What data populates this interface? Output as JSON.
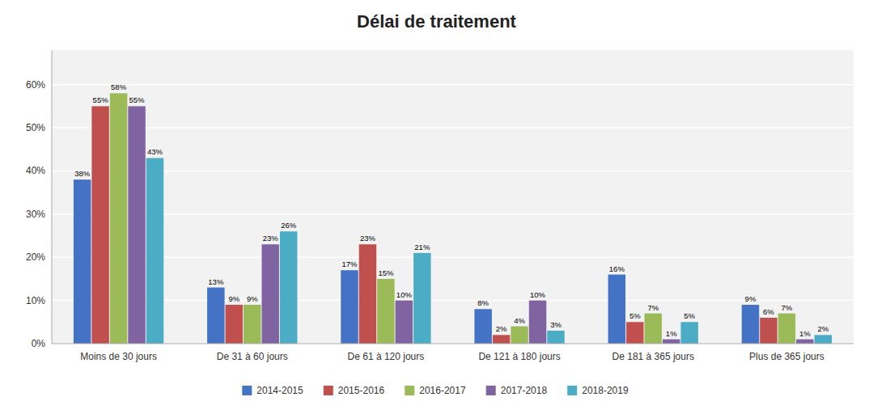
{
  "chart_data": {
    "type": "bar",
    "title": "Délai de traitement",
    "categories": [
      "Moins de 30 jours",
      "De 31 à 60 jours",
      "De 61 à 120 jours",
      "De 121 à 180 jours",
      "De 181 à 365 jours",
      "Plus de 365 jours"
    ],
    "series": [
      {
        "name": "2014-2015",
        "color": "#4472C4",
        "values": [
          38,
          13,
          17,
          8,
          16,
          9
        ],
        "value_labels": [
          "38%",
          "13%",
          "17%",
          "8%",
          "16%",
          "9%"
        ]
      },
      {
        "name": "2015-2016",
        "color": "#C0504D",
        "values": [
          55,
          9,
          23,
          2,
          5,
          6
        ],
        "value_labels": [
          "55%",
          "9%",
          "23%",
          "2%",
          "5%",
          "6%"
        ]
      },
      {
        "name": "2016-2017",
        "color": "#9BBB59",
        "values": [
          58,
          9,
          15,
          4,
          7,
          7
        ],
        "value_labels": [
          "58%",
          "9%",
          "15%",
          "4%",
          "7%",
          "7%"
        ]
      },
      {
        "name": "2017-2018",
        "color": "#8064A2",
        "values": [
          55,
          23,
          10,
          10,
          1,
          1
        ],
        "value_labels": [
          "55%",
          "23%",
          "10%",
          "10%",
          "1%",
          "1%"
        ]
      },
      {
        "name": "2018-2019",
        "color": "#4BACC6",
        "values": [
          43,
          26,
          21,
          3,
          5,
          2
        ],
        "value_labels": [
          "43%",
          "26%",
          "21%",
          "3%",
          "5%",
          "2%"
        ]
      }
    ],
    "ylim": [
      0,
      68
    ],
    "yticks": [
      {
        "value": 0,
        "label": "0%"
      },
      {
        "value": 10,
        "label": "10%"
      },
      {
        "value": 20,
        "label": "20%"
      },
      {
        "value": 30,
        "label": "30%"
      },
      {
        "value": 40,
        "label": "40%"
      },
      {
        "value": 50,
        "label": "50%"
      },
      {
        "value": 60,
        "label": "60%"
      }
    ],
    "grid": true,
    "legend": "bottom",
    "data_labels": true
  }
}
